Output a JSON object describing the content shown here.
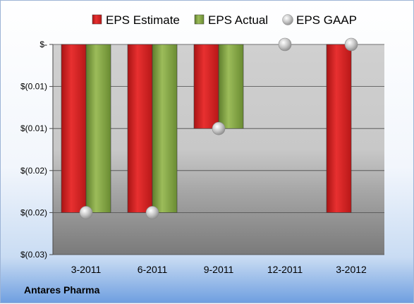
{
  "chart_data": {
    "type": "bar",
    "categories": [
      "3-2011",
      "6-2011",
      "9-2011",
      "12-2011",
      "3-2012"
    ],
    "series": [
      {
        "name": "EPS Estimate",
        "type": "bar",
        "values": [
          -0.02,
          -0.02,
          -0.01,
          null,
          -0.02
        ]
      },
      {
        "name": "EPS Actual",
        "type": "bar",
        "values": [
          -0.02,
          -0.02,
          -0.01,
          null,
          null
        ]
      },
      {
        "name": "EPS GAAP",
        "type": "scatter",
        "values": [
          -0.02,
          -0.02,
          -0.01,
          0,
          0
        ]
      }
    ],
    "ylim": [
      -0.025,
      0
    ],
    "yticks": [
      0,
      -0.005,
      -0.01,
      -0.015,
      -0.02,
      -0.025
    ],
    "ytick_labels": [
      "$-",
      "$(0.01)",
      "$(0.01)",
      "$(0.02)",
      "$(0.02)",
      "$(0.03)"
    ],
    "legend": "top",
    "grid": true,
    "source_label": "Antares Pharma",
    "colors": {
      "EPS Estimate": "#d42020",
      "EPS Actual": "#7fa040",
      "EPS GAAP": "#c8c8c8"
    }
  }
}
